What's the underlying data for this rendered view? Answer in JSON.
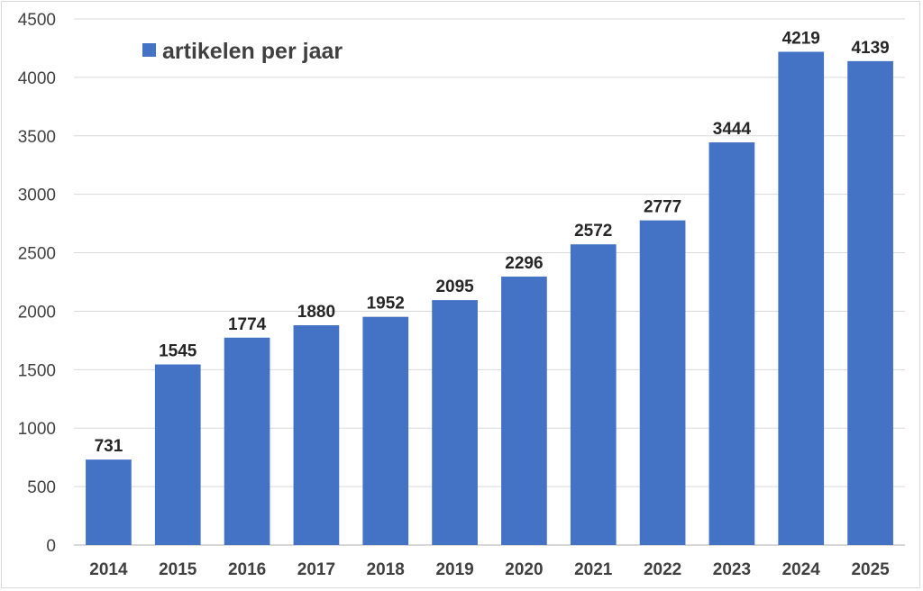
{
  "chart_data": {
    "type": "bar",
    "categories": [
      "2014",
      "2015",
      "2016",
      "2017",
      "2018",
      "2019",
      "2020",
      "2021",
      "2022",
      "2023",
      "2024",
      "2025"
    ],
    "series": [
      {
        "name": "artikelen per jaar",
        "values": [
          731,
          1545,
          1774,
          1880,
          1952,
          2095,
          2296,
          2572,
          2777,
          3444,
          4219,
          4139
        ],
        "color": "#4472c4"
      }
    ],
    "title": "",
    "xlabel": "",
    "ylabel": "",
    "ylim": [
      0,
      4500
    ],
    "yticks": [
      0,
      500,
      1000,
      1500,
      2000,
      2500,
      3000,
      3500,
      4000,
      4500
    ],
    "grid": true,
    "legend_position": "top-left",
    "data_labels": true
  }
}
